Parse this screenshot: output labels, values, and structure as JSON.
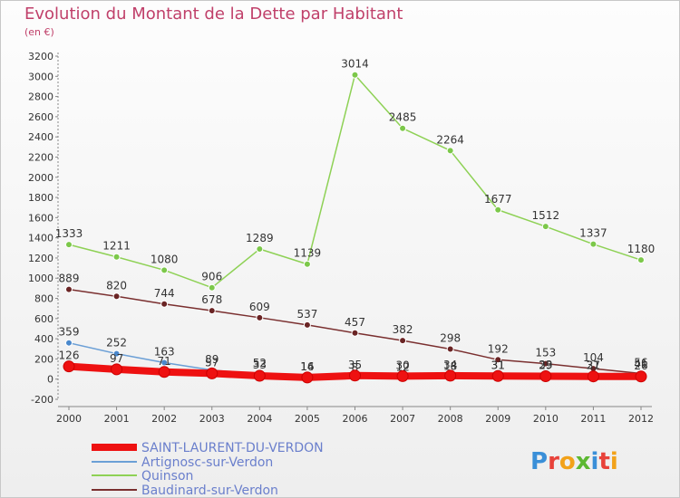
{
  "chart_data": {
    "type": "line",
    "title": "Evolution du Montant de la Dette par Habitant",
    "subtitle": "(en €)",
    "xlabel": "",
    "ylabel": "",
    "x": [
      "2000",
      "2001",
      "2002",
      "2003",
      "2004",
      "2005",
      "2006",
      "2007",
      "2008",
      "2009",
      "2010",
      "2011",
      "2012"
    ],
    "ylim": [
      -200,
      3200
    ],
    "yticks": [
      -200,
      0,
      200,
      400,
      600,
      800,
      1000,
      1200,
      1400,
      1600,
      1800,
      2000,
      2200,
      2400,
      2600,
      2800,
      3000,
      3200
    ],
    "grid": false,
    "legend_position": "bottom-left",
    "series": [
      {
        "name": "SAINT-LAURENT-DU-VERDON",
        "color": "#ee1111",
        "values": [
          126,
          97,
          71,
          57,
          33,
          16,
          35,
          30,
          34,
          31,
          29,
          27,
          26
        ],
        "labels": [
          "126",
          "97",
          "71",
          "57",
          "33",
          "16",
          "35",
          "30",
          "34",
          "31",
          "29",
          "27",
          "26"
        ]
      },
      {
        "name": "Artignosc-sur-Verdon",
        "color": "#6b9fd6",
        "values": [
          359,
          252,
          163,
          89,
          52,
          14,
          8,
          12,
          18,
          31,
          33,
          31,
          41
        ],
        "labels": [
          "359",
          "252",
          "163",
          "89",
          "52",
          "14",
          "8",
          "12",
          "18",
          "31",
          "33",
          "31",
          "41"
        ]
      },
      {
        "name": "Quinson",
        "color": "#8ed155",
        "values": [
          1333,
          1211,
          1080,
          906,
          1289,
          1139,
          3014,
          2485,
          2264,
          1677,
          1512,
          1337,
          1180
        ],
        "labels": [
          "1333",
          "1211",
          "1080",
          "906",
          "1289",
          "1139",
          "3014",
          "2485",
          "2264",
          "1677",
          "1512",
          "1337",
          "1180"
        ]
      },
      {
        "name": "Baudinard-sur-Verdon",
        "color": "#7a2f2f",
        "values": [
          889,
          820,
          744,
          678,
          609,
          537,
          457,
          382,
          298,
          192,
          153,
          104,
          56
        ],
        "labels": [
          "889",
          "820",
          "744",
          "678",
          "609",
          "537",
          "457",
          "382",
          "298",
          "192",
          "153",
          "104",
          "56"
        ]
      }
    ]
  },
  "branding": {
    "logo_text": "Proxiti"
  }
}
